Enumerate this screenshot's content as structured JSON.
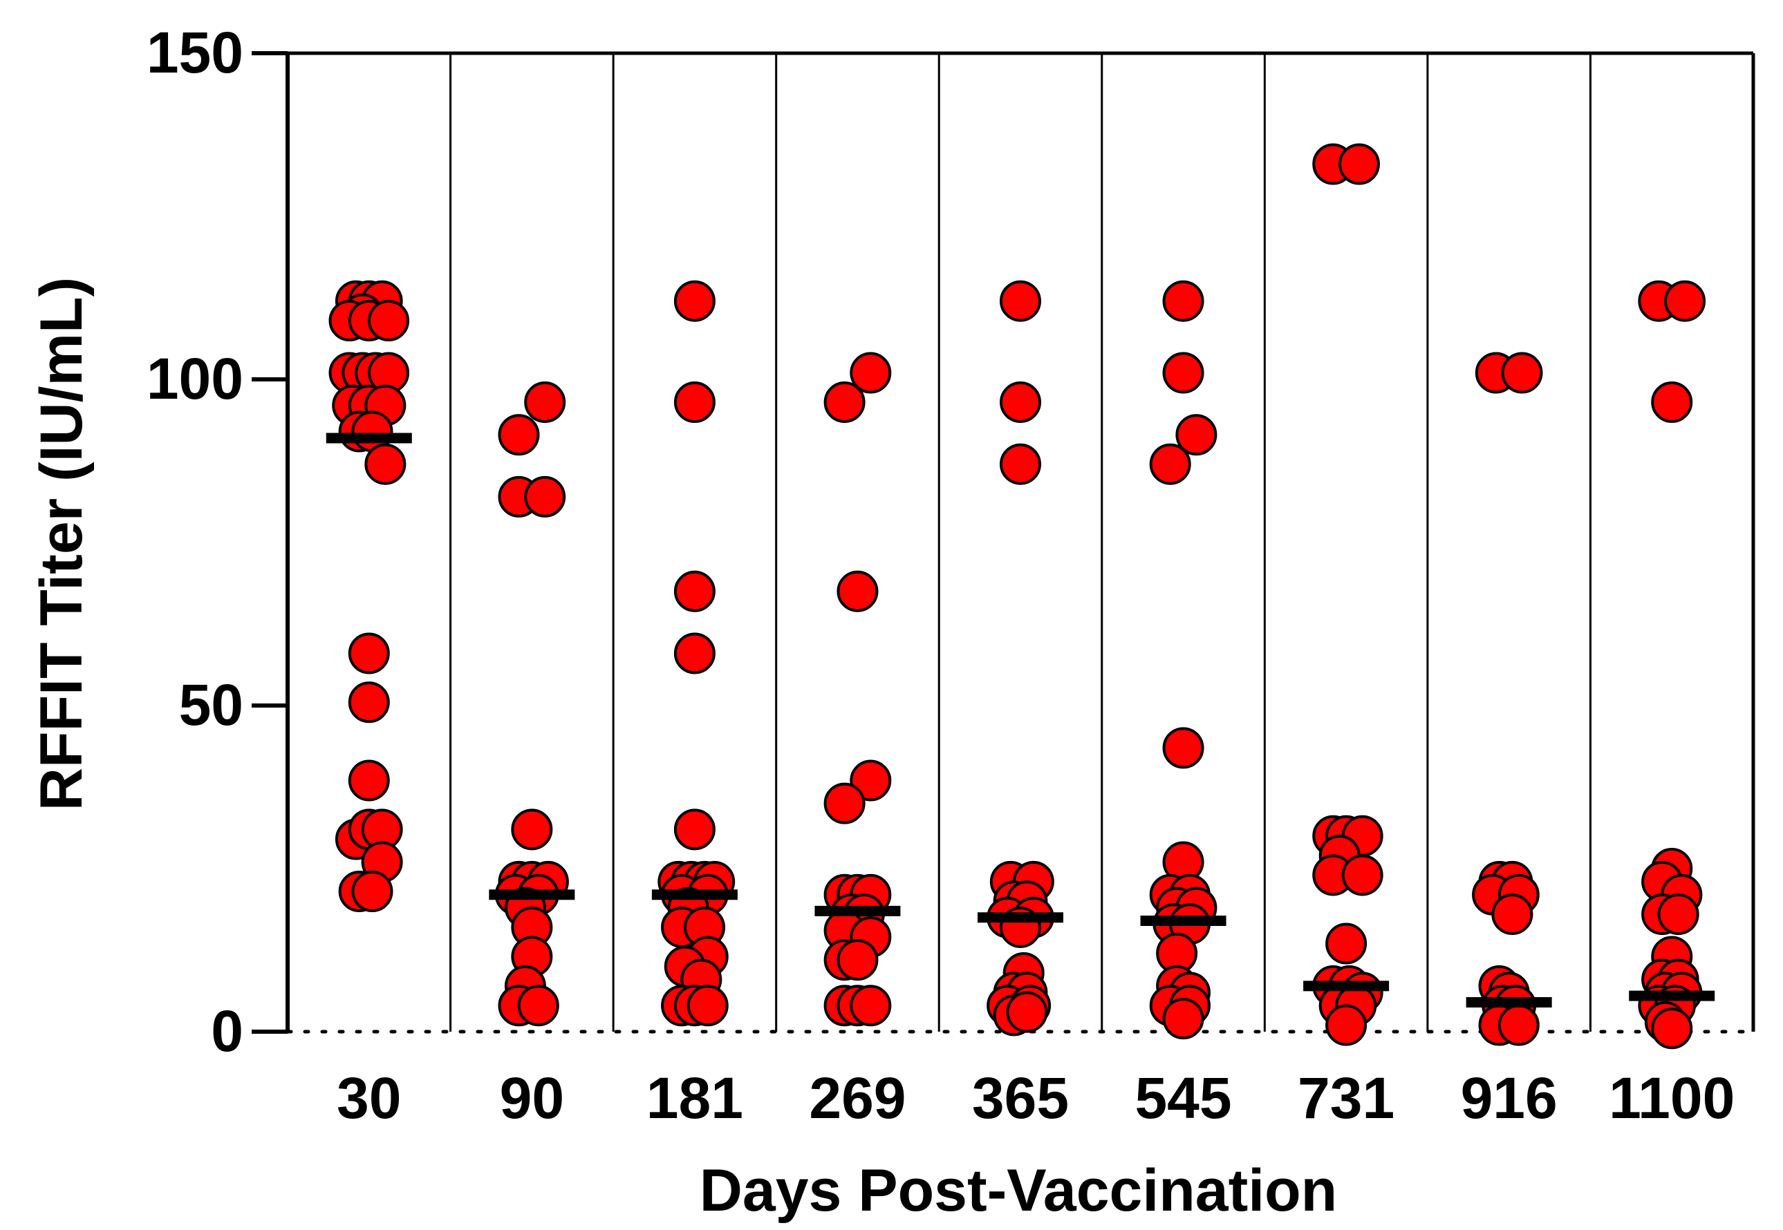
{
  "chart_data": {
    "type": "scatter",
    "subtype": "column-scatter-with-median",
    "title": "",
    "xlabel": "Days Post-Vaccination",
    "ylabel": "RFFIT Titer (IU/mL)",
    "ylim": [
      0,
      150
    ],
    "yticks": [
      0,
      50,
      100,
      150
    ],
    "categories": [
      "30",
      "90",
      "181",
      "269",
      "365",
      "545",
      "731",
      "916",
      "1100"
    ],
    "point_color": "#ff0000",
    "median_color": "#000000",
    "groups": [
      {
        "name": "30",
        "median": 91,
        "points": [
          {
            "x": -0.08,
            "y": 112
          },
          {
            "x": 0.0,
            "y": 112
          },
          {
            "x": 0.08,
            "y": 112
          },
          {
            "x": -0.04,
            "y": 110
          },
          {
            "x": -0.12,
            "y": 109
          },
          {
            "x": 0.0,
            "y": 109
          },
          {
            "x": 0.12,
            "y": 109
          },
          {
            "x": -0.12,
            "y": 101
          },
          {
            "x": -0.04,
            "y": 101
          },
          {
            "x": 0.04,
            "y": 101
          },
          {
            "x": 0.12,
            "y": 101
          },
          {
            "x": -0.1,
            "y": 96
          },
          {
            "x": 0.0,
            "y": 96
          },
          {
            "x": 0.1,
            "y": 96
          },
          {
            "x": -0.06,
            "y": 92
          },
          {
            "x": 0.02,
            "y": 92
          },
          {
            "x": 0.1,
            "y": 87
          },
          {
            "x": 0.0,
            "y": 58
          },
          {
            "x": 0.0,
            "y": 50.5
          },
          {
            "x": 0.0,
            "y": 38.5
          },
          {
            "x": -0.08,
            "y": 29.5
          },
          {
            "x": 0.0,
            "y": 31
          },
          {
            "x": 0.08,
            "y": 31
          },
          {
            "x": 0.08,
            "y": 26
          },
          {
            "x": -0.06,
            "y": 21.5
          },
          {
            "x": 0.02,
            "y": 21.5
          }
        ]
      },
      {
        "name": "90",
        "median": 21,
        "points": [
          {
            "x": 0.08,
            "y": 96.5
          },
          {
            "x": -0.08,
            "y": 91.5
          },
          {
            "x": -0.08,
            "y": 82
          },
          {
            "x": 0.08,
            "y": 82
          },
          {
            "x": 0.0,
            "y": 31
          },
          {
            "x": -0.08,
            "y": 23
          },
          {
            "x": 0.0,
            "y": 23
          },
          {
            "x": 0.1,
            "y": 23
          },
          {
            "x": -0.1,
            "y": 21
          },
          {
            "x": 0.04,
            "y": 21
          },
          {
            "x": -0.04,
            "y": 19
          },
          {
            "x": 0.0,
            "y": 16
          },
          {
            "x": 0.0,
            "y": 11.5
          },
          {
            "x": -0.04,
            "y": 7
          },
          {
            "x": -0.08,
            "y": 4
          },
          {
            "x": 0.04,
            "y": 4
          }
        ]
      },
      {
        "name": "181",
        "median": 21,
        "points": [
          {
            "x": 0.0,
            "y": 112
          },
          {
            "x": 0.0,
            "y": 96.5
          },
          {
            "x": 0.0,
            "y": 67.5
          },
          {
            "x": 0.0,
            "y": 58
          },
          {
            "x": 0.0,
            "y": 31
          },
          {
            "x": -0.1,
            "y": 23
          },
          {
            "x": -0.02,
            "y": 23
          },
          {
            "x": 0.06,
            "y": 23
          },
          {
            "x": 0.12,
            "y": 23
          },
          {
            "x": -0.08,
            "y": 21
          },
          {
            "x": 0.08,
            "y": 21
          },
          {
            "x": -0.04,
            "y": 19
          },
          {
            "x": -0.08,
            "y": 16
          },
          {
            "x": 0.06,
            "y": 16
          },
          {
            "x": 0.08,
            "y": 11.5
          },
          {
            "x": -0.06,
            "y": 10
          },
          {
            "x": 0.04,
            "y": 8
          },
          {
            "x": -0.08,
            "y": 4
          },
          {
            "x": 0.0,
            "y": 4
          },
          {
            "x": 0.08,
            "y": 4
          }
        ]
      },
      {
        "name": "269",
        "median": 18.5,
        "points": [
          {
            "x": 0.08,
            "y": 101
          },
          {
            "x": -0.08,
            "y": 96.5
          },
          {
            "x": 0.0,
            "y": 67.5
          },
          {
            "x": 0.08,
            "y": 38.5
          },
          {
            "x": -0.08,
            "y": 35
          },
          {
            "x": -0.08,
            "y": 21
          },
          {
            "x": 0.0,
            "y": 21
          },
          {
            "x": 0.08,
            "y": 21
          },
          {
            "x": -0.04,
            "y": 18
          },
          {
            "x": 0.04,
            "y": 18
          },
          {
            "x": -0.08,
            "y": 15.5
          },
          {
            "x": 0.08,
            "y": 14.5
          },
          {
            "x": -0.08,
            "y": 11
          },
          {
            "x": 0.0,
            "y": 11
          },
          {
            "x": -0.08,
            "y": 4
          },
          {
            "x": 0.0,
            "y": 4
          },
          {
            "x": 0.08,
            "y": 4
          }
        ]
      },
      {
        "name": "365",
        "median": 17.5,
        "points": [
          {
            "x": 0.0,
            "y": 112
          },
          {
            "x": 0.0,
            "y": 96.5
          },
          {
            "x": 0.0,
            "y": 87
          },
          {
            "x": -0.06,
            "y": 23
          },
          {
            "x": 0.08,
            "y": 23
          },
          {
            "x": -0.04,
            "y": 20
          },
          {
            "x": 0.04,
            "y": 20
          },
          {
            "x": -0.08,
            "y": 17.5
          },
          {
            "x": 0.08,
            "y": 17.5
          },
          {
            "x": 0.0,
            "y": 16
          },
          {
            "x": 0.02,
            "y": 9
          },
          {
            "x": -0.04,
            "y": 6
          },
          {
            "x": 0.04,
            "y": 6
          },
          {
            "x": -0.08,
            "y": 4
          },
          {
            "x": 0.06,
            "y": 4
          },
          {
            "x": -0.04,
            "y": 2.5
          },
          {
            "x": 0.04,
            "y": 3
          }
        ]
      },
      {
        "name": "545",
        "median": 17,
        "points": [
          {
            "x": 0.0,
            "y": 112
          },
          {
            "x": 0.0,
            "y": 101
          },
          {
            "x": 0.08,
            "y": 91.5
          },
          {
            "x": -0.08,
            "y": 87
          },
          {
            "x": 0.0,
            "y": 43.5
          },
          {
            "x": 0.0,
            "y": 26
          },
          {
            "x": -0.08,
            "y": 21
          },
          {
            "x": 0.04,
            "y": 21
          },
          {
            "x": -0.04,
            "y": 19
          },
          {
            "x": 0.08,
            "y": 19
          },
          {
            "x": -0.06,
            "y": 16.5
          },
          {
            "x": 0.04,
            "y": 16.5
          },
          {
            "x": -0.04,
            "y": 12
          },
          {
            "x": -0.04,
            "y": 7
          },
          {
            "x": 0.04,
            "y": 6
          },
          {
            "x": -0.08,
            "y": 4
          },
          {
            "x": 0.04,
            "y": 4
          },
          {
            "x": 0.0,
            "y": 2
          }
        ]
      },
      {
        "name": "731",
        "median": 7,
        "points": [
          {
            "x": -0.08,
            "y": 133
          },
          {
            "x": 0.08,
            "y": 133
          },
          {
            "x": -0.08,
            "y": 30
          },
          {
            "x": 0.0,
            "y": 30
          },
          {
            "x": 0.1,
            "y": 30
          },
          {
            "x": -0.04,
            "y": 27
          },
          {
            "x": -0.08,
            "y": 24
          },
          {
            "x": 0.1,
            "y": 24
          },
          {
            "x": 0.0,
            "y": 13.5
          },
          {
            "x": -0.08,
            "y": 7
          },
          {
            "x": 0.02,
            "y": 7
          },
          {
            "x": 0.1,
            "y": 6
          },
          {
            "x": -0.04,
            "y": 4
          },
          {
            "x": 0.06,
            "y": 4
          },
          {
            "x": 0.0,
            "y": 1
          }
        ]
      },
      {
        "name": "916",
        "median": 4.5,
        "points": [
          {
            "x": -0.08,
            "y": 101
          },
          {
            "x": 0.08,
            "y": 101
          },
          {
            "x": -0.06,
            "y": 23
          },
          {
            "x": 0.02,
            "y": 23
          },
          {
            "x": -0.1,
            "y": 21
          },
          {
            "x": 0.06,
            "y": 21
          },
          {
            "x": 0.02,
            "y": 18
          },
          {
            "x": -0.06,
            "y": 7
          },
          {
            "x": 0.0,
            "y": 6
          },
          {
            "x": -0.04,
            "y": 4
          },
          {
            "x": 0.04,
            "y": 4
          },
          {
            "x": -0.06,
            "y": 1
          },
          {
            "x": 0.06,
            "y": 1
          }
        ]
      },
      {
        "name": "1100",
        "median": 5.5,
        "points": [
          {
            "x": -0.08,
            "y": 112
          },
          {
            "x": 0.08,
            "y": 112
          },
          {
            "x": 0.0,
            "y": 96.5
          },
          {
            "x": 0.0,
            "y": 25
          },
          {
            "x": -0.06,
            "y": 23
          },
          {
            "x": 0.06,
            "y": 21
          },
          {
            "x": -0.06,
            "y": 18
          },
          {
            "x": 0.04,
            "y": 18
          },
          {
            "x": 0.0,
            "y": 11.5
          },
          {
            "x": -0.06,
            "y": 8
          },
          {
            "x": 0.04,
            "y": 8
          },
          {
            "x": -0.04,
            "y": 6
          },
          {
            "x": 0.06,
            "y": 6
          },
          {
            "x": -0.08,
            "y": 4
          },
          {
            "x": 0.02,
            "y": 4
          },
          {
            "x": -0.04,
            "y": 1.5
          },
          {
            "x": 0.0,
            "y": 0.5
          }
        ]
      }
    ]
  }
}
